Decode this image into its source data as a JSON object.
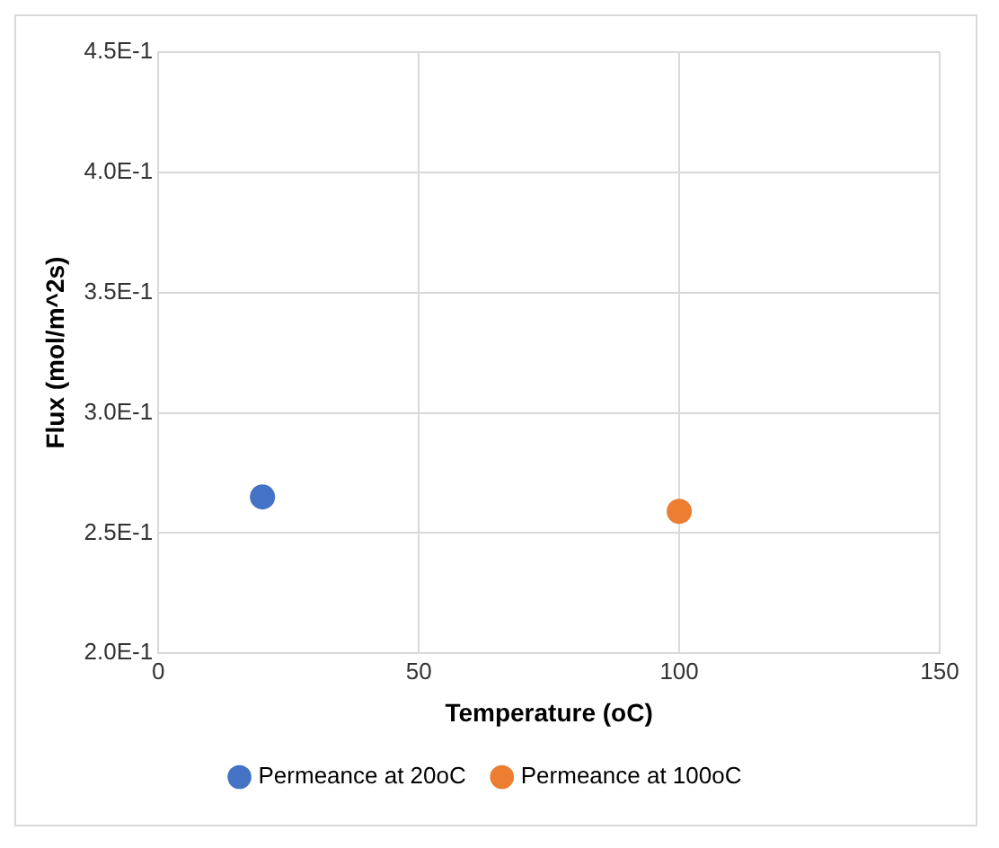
{
  "chart_data": {
    "type": "scatter",
    "xlabel": "Temperature (oC)",
    "ylabel": "Flux (mol/m^2s)",
    "xlim": [
      0,
      150
    ],
    "xticks": [
      0,
      50,
      100,
      150
    ],
    "ylim": [
      0.2,
      0.45
    ],
    "yticks": [
      {
        "value": 0.2,
        "label": "2.0E-1"
      },
      {
        "value": 0.25,
        "label": "2.5E-1"
      },
      {
        "value": 0.3,
        "label": "3.0E-1"
      },
      {
        "value": 0.35,
        "label": "3.5E-1"
      },
      {
        "value": 0.4,
        "label": "4.0E-1"
      },
      {
        "value": 0.45,
        "label": "4.5E-1"
      }
    ],
    "series": [
      {
        "name": "Permeance at 20oC",
        "color": "#4472c4",
        "x": [
          20
        ],
        "values": [
          0.265
        ]
      },
      {
        "name": "Permeance at 100oC",
        "color": "#ed7d31",
        "x": [
          100
        ],
        "values": [
          0.259
        ]
      }
    ],
    "grid": true,
    "legend": "bottom",
    "marker": "circle"
  }
}
